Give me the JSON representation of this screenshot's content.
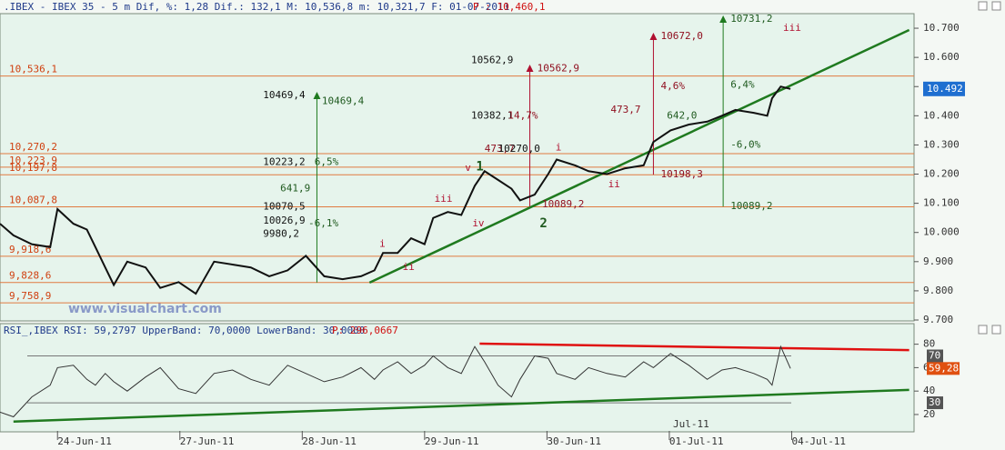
{
  "chart_data": [
    {
      "type": "line",
      "title": ".IBEX - IBEX 35 -  5 m Dif, %: 1,28 Dif.: 132,1 M: 10,536,8 m: 10,321,7 F: 01-07-2011",
      "subtitle": "P : 10,460,1",
      "watermark": "www.visualchart.com",
      "xlim": [
        -0.47,
        7.0
      ],
      "ylim": [
        9700,
        10750
      ],
      "yticks": [
        {
          "value": 9700,
          "label": "9.700"
        },
        {
          "value": 9800,
          "label": "9.800"
        },
        {
          "value": 9900,
          "label": "9.900"
        },
        {
          "value": 10000,
          "label": "10.000"
        },
        {
          "value": 10100,
          "label": "10.100"
        },
        {
          "value": 10200,
          "label": "10.200"
        },
        {
          "value": 10300,
          "label": "10.300"
        },
        {
          "value": 10400,
          "label": "10.400"
        },
        {
          "value": 10500,
          "label": "10.500"
        },
        {
          "value": 10600,
          "label": "10.600"
        },
        {
          "value": 10700,
          "label": "10.700"
        }
      ],
      "badge": {
        "value": 10492,
        "label": "10.492"
      },
      "levels": [
        {
          "value": 10536.1,
          "label": "10,536,1"
        },
        {
          "value": 10270.2,
          "label": "10,270,2"
        },
        {
          "value": 10223.9,
          "label": "10,223,9"
        },
        {
          "value": 10197.8,
          "label": "10,197,8"
        },
        {
          "value": 10087.8,
          "label": "10,087,8"
        },
        {
          "value": 9918.6,
          "label": "9,918,6"
        },
        {
          "value": 9828.6,
          "label": "9,828,6"
        },
        {
          "value": 9758.9,
          "label": "9,758,9"
        }
      ],
      "series": [
        {
          "name": "IBEX 35",
          "color": "#111111",
          "x": [
            -0.47,
            -0.36,
            -0.21,
            -0.06,
            0,
            0.13,
            0.24,
            0.31,
            0.39,
            0.46,
            0.57,
            0.72,
            0.84,
            0.99,
            1.13,
            1.28,
            1.43,
            1.58,
            1.73,
            1.88,
            2.03,
            2.18,
            2.33,
            2.48,
            2.59,
            2.66,
            2.78,
            2.89,
            3.0,
            3.07,
            3.19,
            3.3,
            3.41,
            3.49,
            3.6,
            3.71,
            3.78,
            3.9,
            4.01,
            4.08,
            4.23,
            4.34,
            4.49,
            4.64,
            4.79,
            4.87,
            5.01,
            5.16,
            5.31,
            5.43,
            5.54,
            5.69,
            5.8,
            5.84,
            5.91,
            5.99
          ],
          "values": [
            10030,
            9990,
            9960,
            9950,
            10080,
            10030,
            10010,
            9950,
            9880,
            9820,
            9900,
            9880,
            9810,
            9830,
            9790,
            9900,
            9890,
            9880,
            9850,
            9870,
            9920,
            9850,
            9840,
            9850,
            9870,
            9930,
            9930,
            9980,
            9960,
            10050,
            10070,
            10060,
            10160,
            10210,
            10180,
            10150,
            10110,
            10130,
            10200,
            10250,
            10230,
            10210,
            10200,
            10220,
            10230,
            10310,
            10350,
            10370,
            10380,
            10400,
            10420,
            10410,
            10400,
            10460,
            10500,
            10492
          ]
        }
      ],
      "trendlines": [
        {
          "color": "#1f7a1f",
          "x": [
            2.55,
            6.96
          ],
          "y": [
            9828,
            10694
          ]
        }
      ],
      "measures": [
        {
          "color": "#1f7a1f",
          "x": 5.44,
          "from": 10089.2,
          "to": 10731.2
        },
        {
          "color": "#b01030",
          "x": 4.87,
          "from": 10198.3,
          "to": 10672.0
        },
        {
          "color": "#b01030",
          "x": 3.86,
          "from": 10089.2,
          "to": 10562.9
        },
        {
          "color": "#1f7a1f",
          "x": 2.12,
          "from": 9828.6,
          "to": 10469.4
        }
      ],
      "annotations": [
        {
          "text": "10731,2",
          "x": 5.5,
          "y": 10731,
          "color": "#1f5a1f"
        },
        {
          "text": "10672,0",
          "x": 4.93,
          "y": 10672,
          "color": "#901020"
        },
        {
          "text": "10562,9",
          "x": 3.38,
          "y": 10590,
          "color": "#111111"
        },
        {
          "text": "10562,9",
          "x": 3.92,
          "y": 10562,
          "color": "#901020"
        },
        {
          "text": "10469,4",
          "x": 1.68,
          "y": 10469,
          "color": "#111111"
        },
        {
          "text": "10469,4",
          "x": 2.16,
          "y": 10450,
          "color": "#1f5a1f"
        },
        {
          "text": "10382,1",
          "x": 3.38,
          "y": 10400,
          "color": "#111111"
        },
        {
          "text": "14,7%",
          "x": 3.68,
          "y": 10400,
          "color": "#901020"
        },
        {
          "text": "473,7",
          "x": 3.49,
          "y": 10285,
          "color": "#901020"
        },
        {
          "text": "10270,0",
          "x": 3.6,
          "y": 10285,
          "color": "#111111"
        },
        {
          "text": "10223,2",
          "x": 1.68,
          "y": 10240,
          "color": "#111111"
        },
        {
          "text": "6,5%",
          "x": 2.1,
          "y": 10240,
          "color": "#1f5a1f"
        },
        {
          "text": "641,9",
          "x": 1.82,
          "y": 10150,
          "color": "#1f5a1f"
        },
        {
          "text": "10070,5",
          "x": 1.68,
          "y": 10088,
          "color": "#111111"
        },
        {
          "text": "10026,9",
          "x": 1.68,
          "y": 10040,
          "color": "#111111"
        },
        {
          "text": "-6,1%",
          "x": 2.05,
          "y": 10030,
          "color": "#1f5a1f"
        },
        {
          "text": "9980,2",
          "x": 1.68,
          "y": 9995,
          "color": "#111111"
        },
        {
          "text": "4,6%",
          "x": 4.93,
          "y": 10500,
          "color": "#901020"
        },
        {
          "text": "473,7",
          "x": 4.52,
          "y": 10420,
          "color": "#901020"
        },
        {
          "text": "6,4%",
          "x": 5.5,
          "y": 10505,
          "color": "#1f5a1f"
        },
        {
          "text": "642,0",
          "x": 4.98,
          "y": 10400,
          "color": "#1f5a1f"
        },
        {
          "text": "-6,0%",
          "x": 5.5,
          "y": 10300,
          "color": "#1f5a1f"
        },
        {
          "text": "10198,3",
          "x": 4.93,
          "y": 10198,
          "color": "#901020"
        },
        {
          "text": "10089,2",
          "x": 5.5,
          "y": 10089,
          "color": "#1f5a1f"
        },
        {
          "text": "10089,2",
          "x": 3.96,
          "y": 10095,
          "color": "#901020"
        },
        {
          "text": "iii",
          "x": 5.93,
          "y": 10700,
          "color": "#b01030"
        },
        {
          "text": "i",
          "x": 4.07,
          "y": 10290,
          "color": "#b01030"
        },
        {
          "text": "ii",
          "x": 4.5,
          "y": 10165,
          "color": "#b01030"
        },
        {
          "text": "v",
          "x": 3.33,
          "y": 10220,
          "color": "#b01030"
        },
        {
          "text": "iii",
          "x": 3.08,
          "y": 10115,
          "color": "#b01030"
        },
        {
          "text": "iv",
          "x": 3.39,
          "y": 10030,
          "color": "#b01030"
        },
        {
          "text": "i",
          "x": 2.63,
          "y": 9960,
          "color": "#b01030"
        },
        {
          "text": "ii",
          "x": 2.82,
          "y": 9880,
          "color": "#b01030"
        },
        {
          "text": "1",
          "x": 3.42,
          "y": 10225,
          "color": "#1f5a1f"
        },
        {
          "text": "2",
          "x": 3.94,
          "y": 10030,
          "color": "#1f5a1f"
        }
      ]
    },
    {
      "type": "line",
      "title": "RSI_,IBEX RSI: 59,2797 UpperBand: 70,0000 LowerBand: 30,0000",
      "subtitle": "P: 296,0667",
      "month_label": "Jul-11",
      "xlim": [
        -0.47,
        7.0
      ],
      "xticks": [
        {
          "value": 0,
          "label": "24-Jun-11"
        },
        {
          "value": 1,
          "label": "27-Jun-11"
        },
        {
          "value": 2,
          "label": "28-Jun-11"
        },
        {
          "value": 3,
          "label": "29-Jun-11"
        },
        {
          "value": 4,
          "label": "30-Jun-11"
        },
        {
          "value": 5,
          "label": "01-Jul-11"
        },
        {
          "value": 6,
          "label": "04-Jul-11"
        }
      ],
      "ylim": [
        6,
        96
      ],
      "yticks": [
        20,
        40,
        60,
        80
      ],
      "bands": [
        70,
        30
      ],
      "badge": "59,28",
      "series": [
        {
          "name": "RSI",
          "color": "#333333",
          "x": [
            -0.47,
            -0.36,
            -0.21,
            -0.06,
            0,
            0.13,
            0.24,
            0.31,
            0.39,
            0.46,
            0.57,
            0.72,
            0.84,
            0.99,
            1.13,
            1.28,
            1.43,
            1.58,
            1.73,
            1.88,
            2.03,
            2.18,
            2.33,
            2.48,
            2.59,
            2.66,
            2.78,
            2.89,
            3.0,
            3.07,
            3.19,
            3.3,
            3.41,
            3.49,
            3.6,
            3.71,
            3.78,
            3.9,
            4.01,
            4.08,
            4.23,
            4.34,
            4.49,
            4.64,
            4.79,
            4.87,
            5.01,
            5.16,
            5.31,
            5.43,
            5.54,
            5.69,
            5.8,
            5.84,
            5.91,
            5.99
          ],
          "values": [
            22,
            18,
            35,
            45,
            60,
            62,
            50,
            45,
            55,
            48,
            40,
            52,
            60,
            42,
            38,
            55,
            58,
            50,
            45,
            62,
            55,
            48,
            52,
            60,
            50,
            58,
            65,
            55,
            62,
            70,
            60,
            55,
            78,
            65,
            45,
            35,
            50,
            70,
            68,
            55,
            50,
            60,
            55,
            52,
            65,
            60,
            72,
            62,
            50,
            58,
            60,
            55,
            50,
            45,
            78,
            59.28
          ]
        }
      ],
      "trendlines": [
        {
          "color": "#e01010",
          "x": [
            3.45,
            6.96
          ],
          "y": [
            80.5,
            75
          ]
        },
        {
          "color": "#1f7a1f",
          "x": [
            -0.36,
            6.96
          ],
          "y": [
            14,
            41
          ]
        }
      ]
    }
  ]
}
